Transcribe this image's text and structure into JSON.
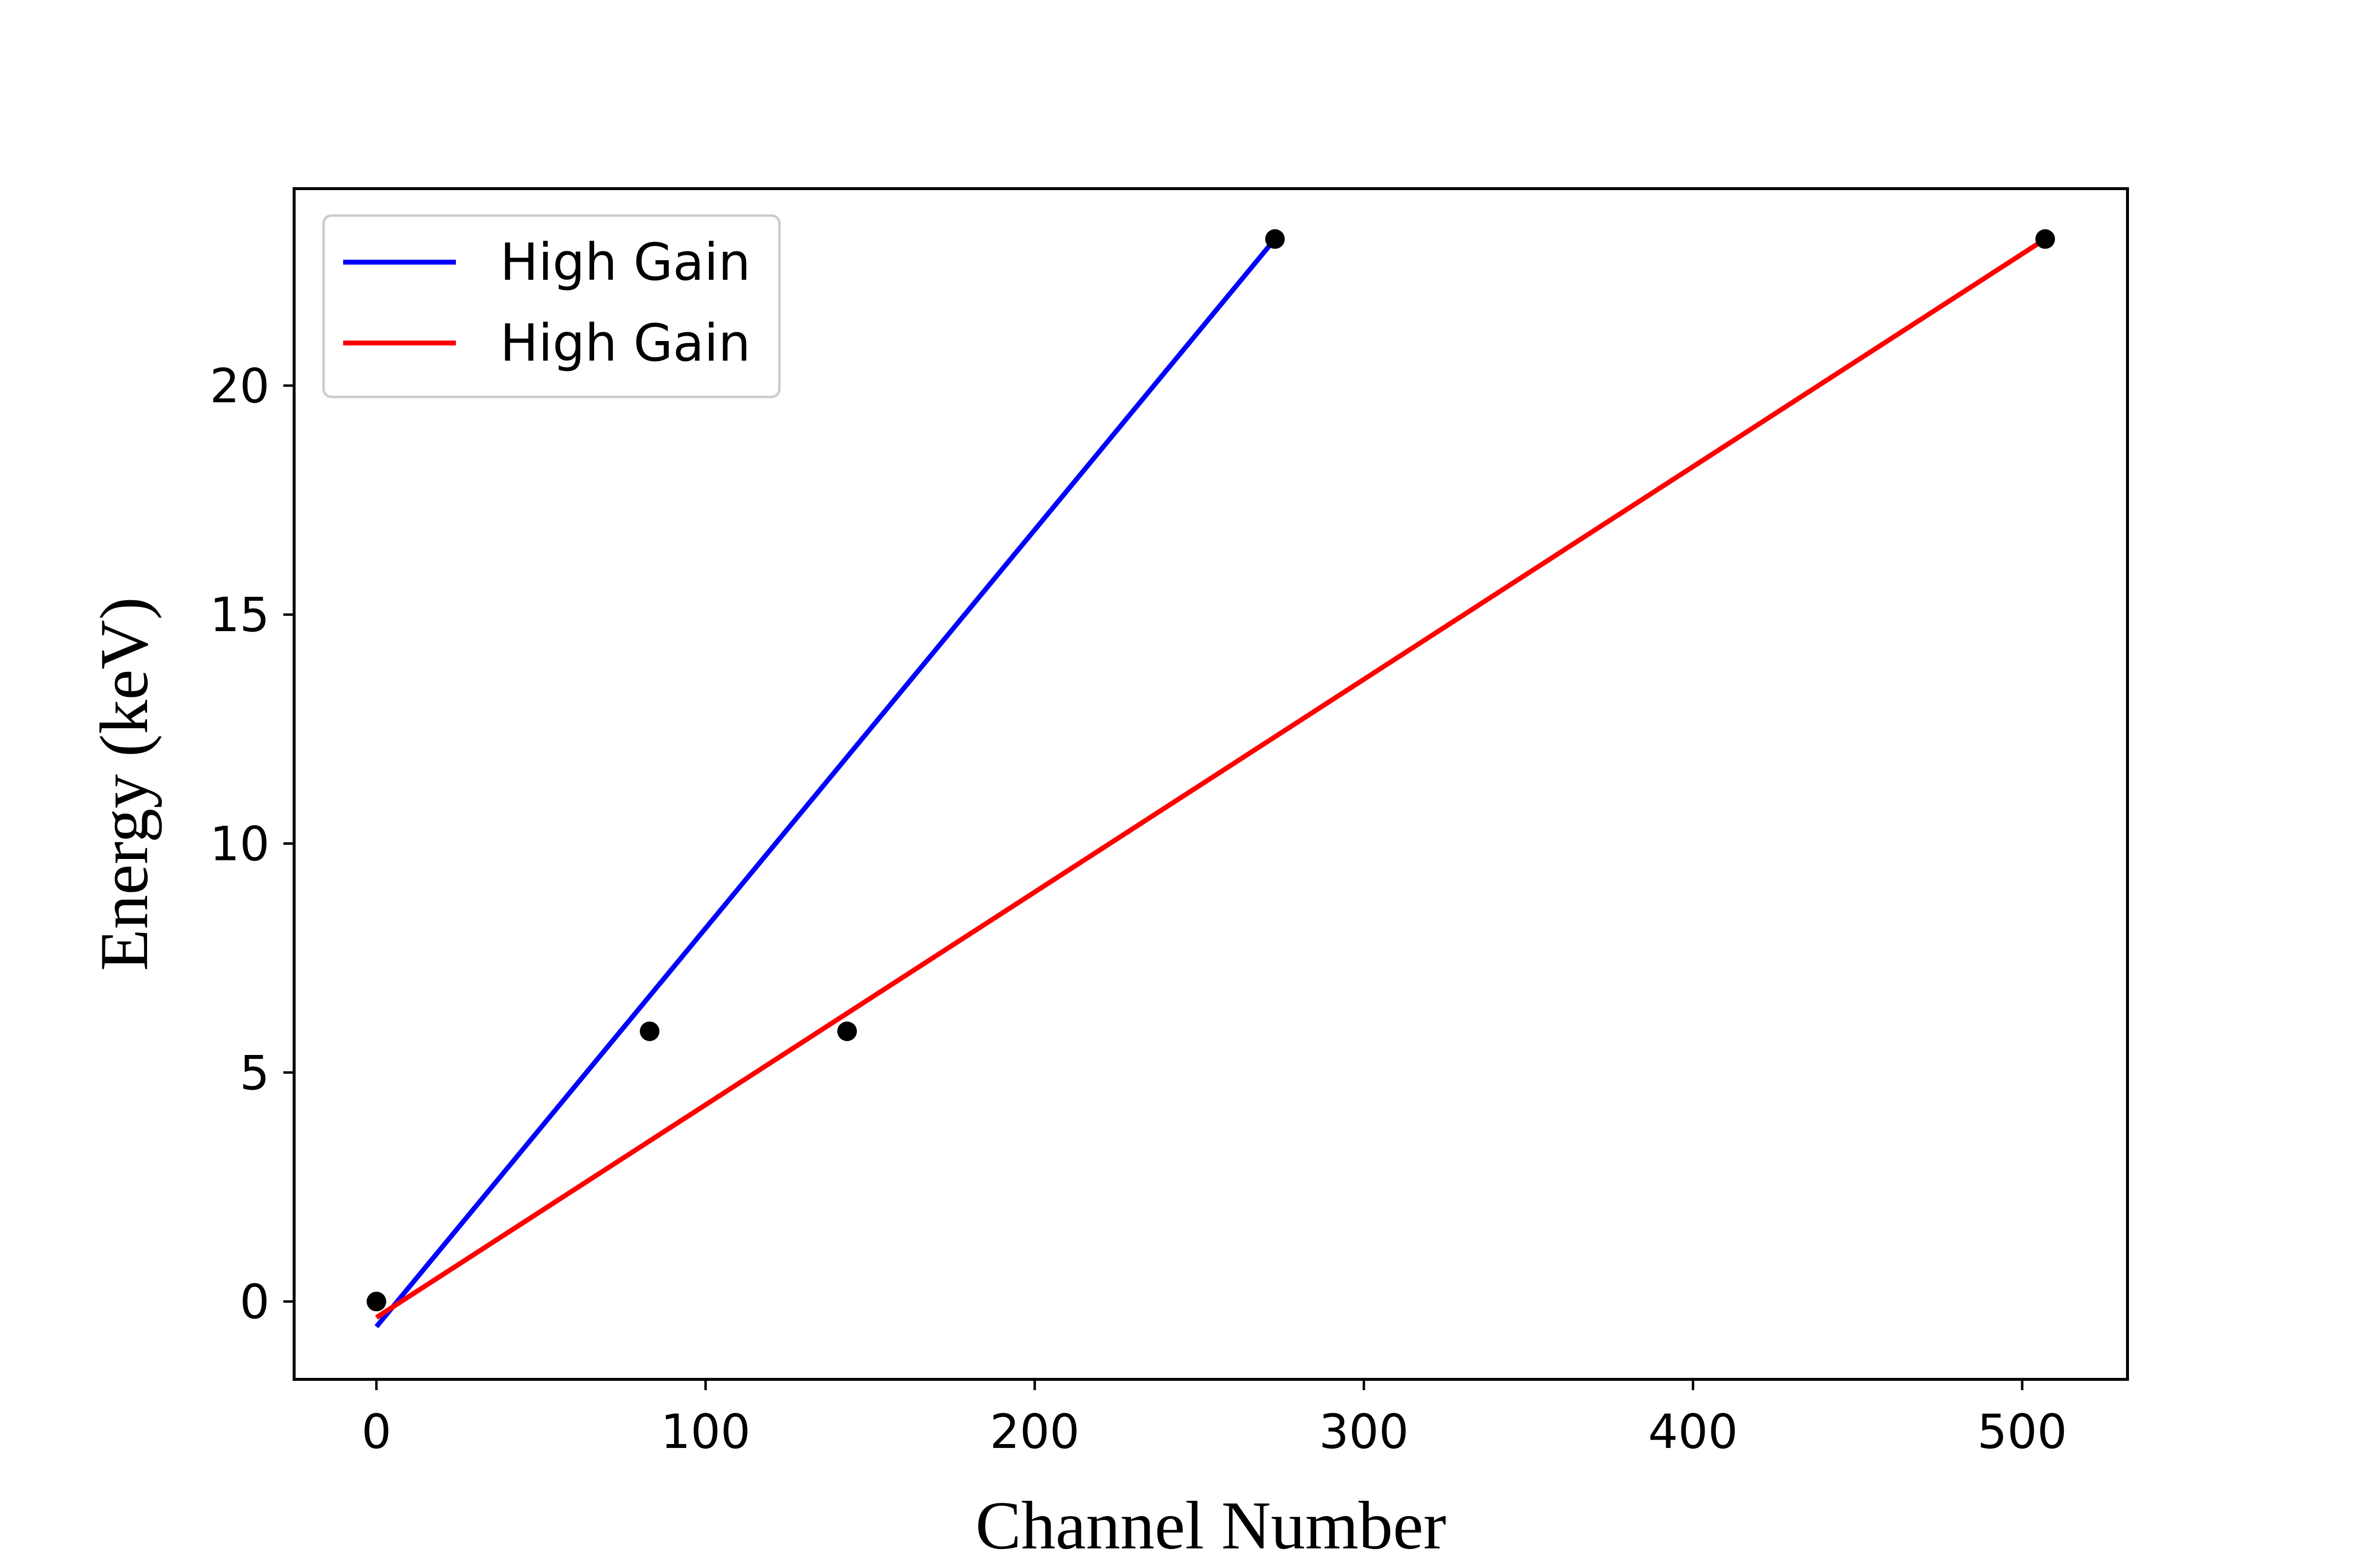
{
  "chart_data": {
    "type": "line",
    "title": "",
    "xlabel": "Channel Number",
    "ylabel": "Energy (keV)",
    "xlim": [
      -25,
      532
    ],
    "ylim": [
      -1.7,
      24.3
    ],
    "xticks": [
      0,
      100,
      200,
      300,
      400,
      500
    ],
    "yticks": [
      0,
      5,
      10,
      15,
      20
    ],
    "grid": false,
    "legend": {
      "placement": "top-left"
    },
    "series": [
      {
        "name": "High Gain",
        "kind": "line",
        "color": "#0000ff",
        "x": [
          0,
          273
        ],
        "y": [
          -0.55,
          23.2
        ]
      },
      {
        "name": "High Gain",
        "kind": "line",
        "color": "#ff0000",
        "x": [
          0,
          507
        ],
        "y": [
          -0.35,
          23.2
        ]
      }
    ],
    "points": {
      "color": "#000000",
      "x": [
        0,
        83,
        143,
        273,
        507
      ],
      "y": [
        0,
        5.9,
        5.9,
        23.2,
        23.2
      ]
    }
  }
}
